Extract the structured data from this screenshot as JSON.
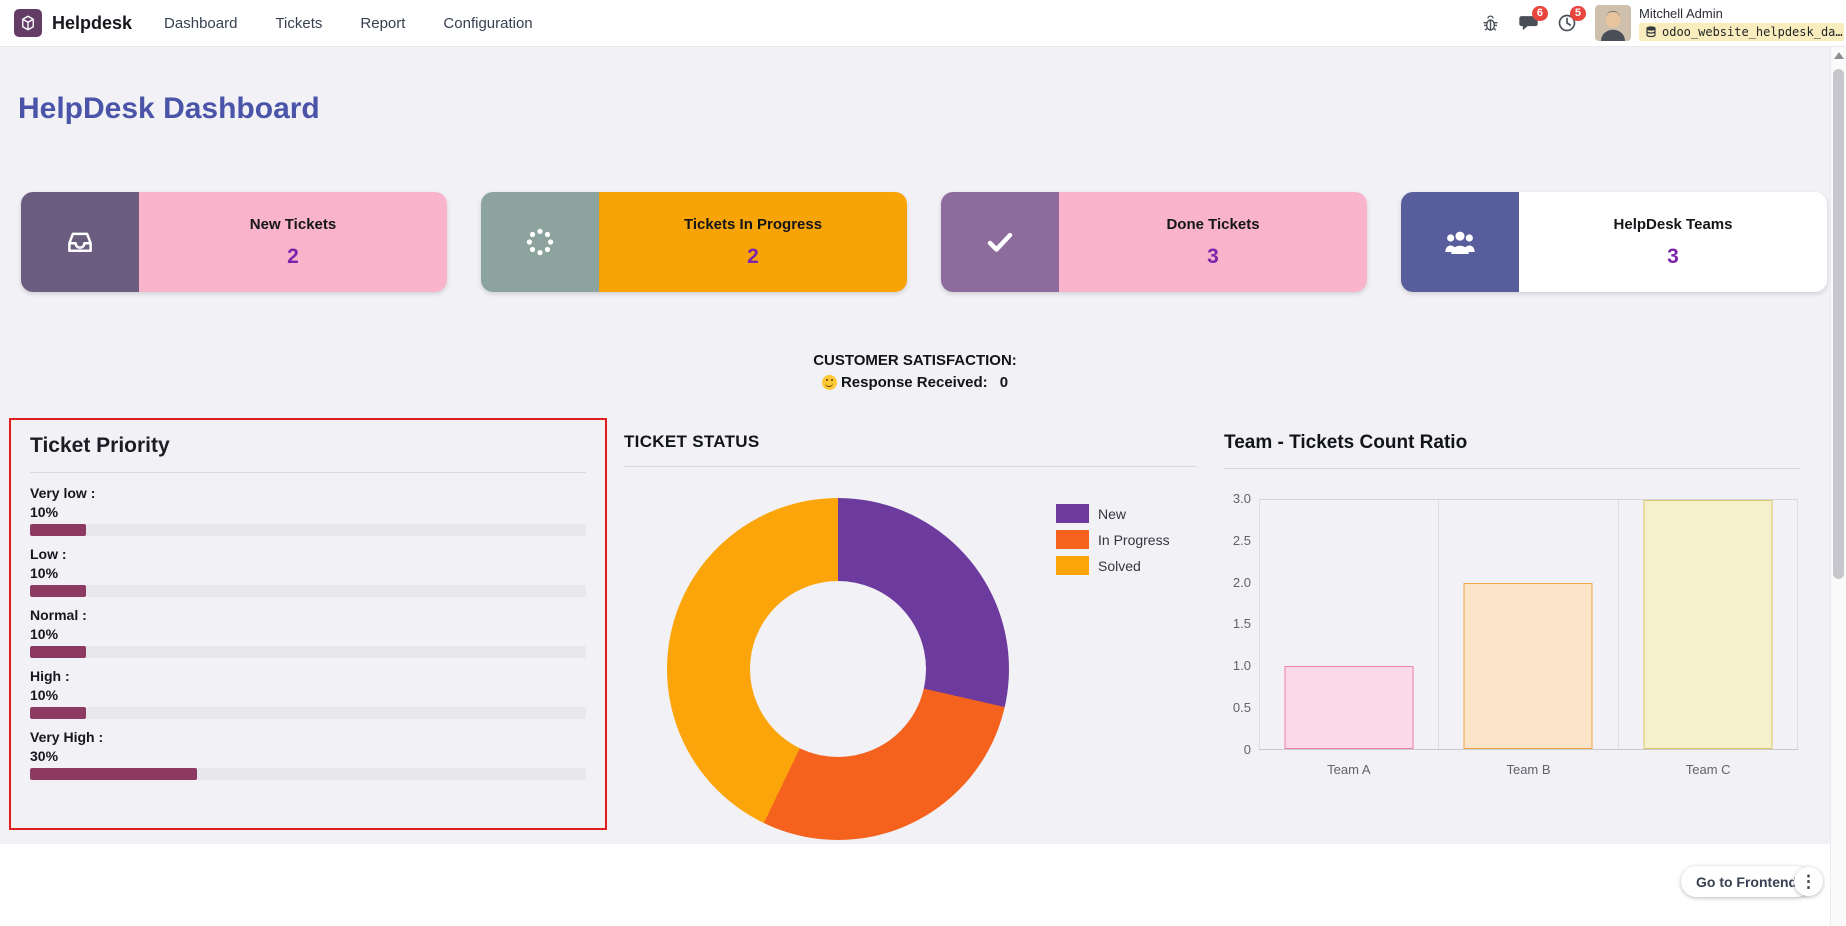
{
  "navbar": {
    "brand": "Helpdesk",
    "menu": [
      "Dashboard",
      "Tickets",
      "Report",
      "Configuration"
    ],
    "systray": {
      "messages_badge": "6",
      "activities_badge": "5",
      "badge_color": "#e9453f",
      "user_name": "Mitchell Admin",
      "database": "odoo_website_helpdesk_da…"
    }
  },
  "page": {
    "title": "HelpDesk Dashboard",
    "title_color": "#4a54a8"
  },
  "stat_cards": [
    {
      "label": "New Tickets",
      "value": "2",
      "icon": "inbox-icon",
      "icon_bg": "#6a5d80",
      "body_bg": "#f9b3cb",
      "value_color": "#7c24aa"
    },
    {
      "label": "Tickets In Progress",
      "value": "2",
      "icon": "spinner-icon",
      "icon_bg": "#8ca39e",
      "body_bg": "#f8a406",
      "value_color": "#7c24aa"
    },
    {
      "label": "Done Tickets",
      "value": "3",
      "icon": "check-icon",
      "icon_bg": "#8e6b9d",
      "body_bg": "#f9b3cb",
      "value_color": "#7c24aa"
    },
    {
      "label": "HelpDesk Teams",
      "value": "3",
      "icon": "users-icon",
      "icon_bg": "#575e9b",
      "body_bg": "#ffffff",
      "value_color": "#7c24aa"
    }
  ],
  "satisfaction": {
    "title": "CUSTOMER SATISFACTION:",
    "icon": "smiley-icon",
    "label": "Response Received:",
    "value": "0"
  },
  "priority_panel": {
    "title": "Ticket Priority",
    "highlight_border": "#e01e1e",
    "bar_color": "#8c3a62",
    "items": [
      {
        "label": "Very low :",
        "percent_label": "10%",
        "value": 10
      },
      {
        "label": "Low :",
        "percent_label": "10%",
        "value": 10
      },
      {
        "label": "Normal :",
        "percent_label": "10%",
        "value": 10
      },
      {
        "label": "High :",
        "percent_label": "10%",
        "value": 10
      },
      {
        "label": "Very High :",
        "percent_label": "30%",
        "value": 30
      }
    ]
  },
  "chart_data": [
    {
      "type": "pie",
      "donut": true,
      "title": "TICKET STATUS",
      "labels": [
        "New",
        "In Progress",
        "Solved"
      ],
      "values": [
        2,
        2,
        3
      ],
      "colors": [
        "#6d3a9e",
        "#f4621e",
        "#fba50a"
      ],
      "legend_position": "right"
    },
    {
      "type": "bar",
      "title": "Team - Tickets Count Ratio",
      "categories": [
        "Team A",
        "Team B",
        "Team C"
      ],
      "values": [
        1,
        2,
        3
      ],
      "fill_colors": [
        "#fbd9e6",
        "#fbe4c8",
        "#f7f0cc"
      ],
      "border_colors": [
        "#ee7fab",
        "#f2a44b",
        "#d8c766"
      ],
      "ylim": [
        0,
        3
      ],
      "ytick_labels": [
        "3.0",
        "2.5",
        "2.0",
        "1.5",
        "1.0",
        "0.5",
        "0"
      ],
      "grid": "vertical"
    }
  ],
  "footer": {
    "frontend_button": "Go to Frontend",
    "more_icon": "ellipsis-icon"
  }
}
